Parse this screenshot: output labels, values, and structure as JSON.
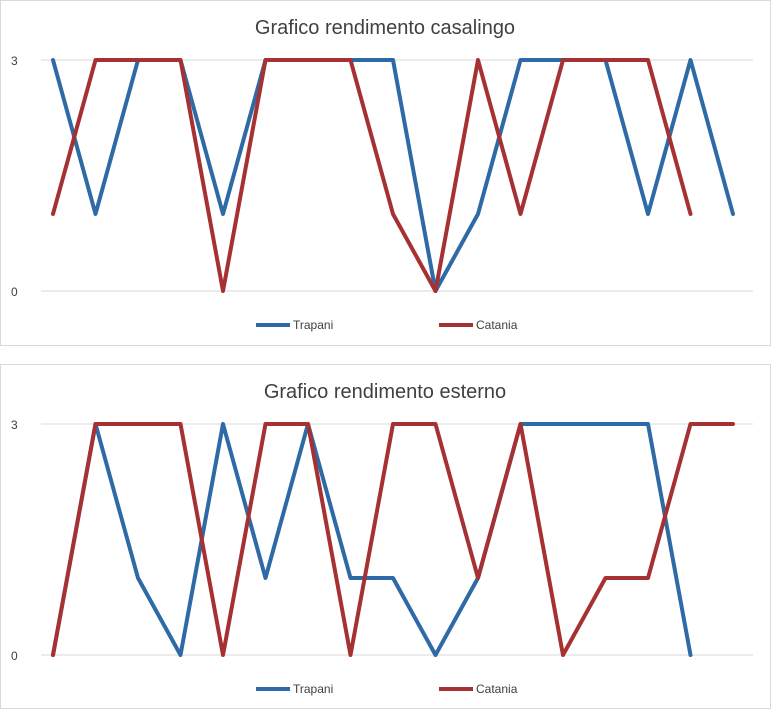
{
  "colors": {
    "trapani": "#2e6aa6",
    "catania": "#a63133",
    "grid": "#d9d9d9",
    "text": "#404040"
  },
  "chart_data": [
    {
      "type": "line",
      "title": "Grafico rendimento casalingo",
      "ylim": [
        0,
        3
      ],
      "yticks": [
        "3",
        "0"
      ],
      "grid": true,
      "legend": "bottom",
      "series": [
        {
          "name": "Trapani",
          "color": "#2e6aa6",
          "values": [
            3,
            1,
            3,
            3,
            1,
            3,
            3,
            3,
            3,
            0,
            1,
            3,
            3,
            3,
            1,
            3,
            1
          ]
        },
        {
          "name": "Catania",
          "color": "#a63133",
          "values": [
            1,
            3,
            3,
            3,
            0,
            3,
            3,
            3,
            1,
            0,
            3,
            1,
            3,
            3,
            3,
            1
          ]
        }
      ]
    },
    {
      "type": "line",
      "title": "Grafico rendimento esterno",
      "ylim": [
        0,
        3
      ],
      "yticks": [
        "3",
        "0"
      ],
      "grid": true,
      "legend": "bottom",
      "series": [
        {
          "name": "Trapani",
          "color": "#2e6aa6",
          "values": [
            0,
            3,
            1,
            0,
            3,
            1,
            3,
            1,
            1,
            0,
            1,
            3,
            3,
            3,
            3,
            0
          ]
        },
        {
          "name": "Catania",
          "color": "#a63133",
          "values": [
            0,
            3,
            3,
            3,
            0,
            3,
            3,
            0,
            3,
            3,
            1,
            3,
            0,
            1,
            1,
            3,
            3
          ]
        }
      ]
    }
  ]
}
